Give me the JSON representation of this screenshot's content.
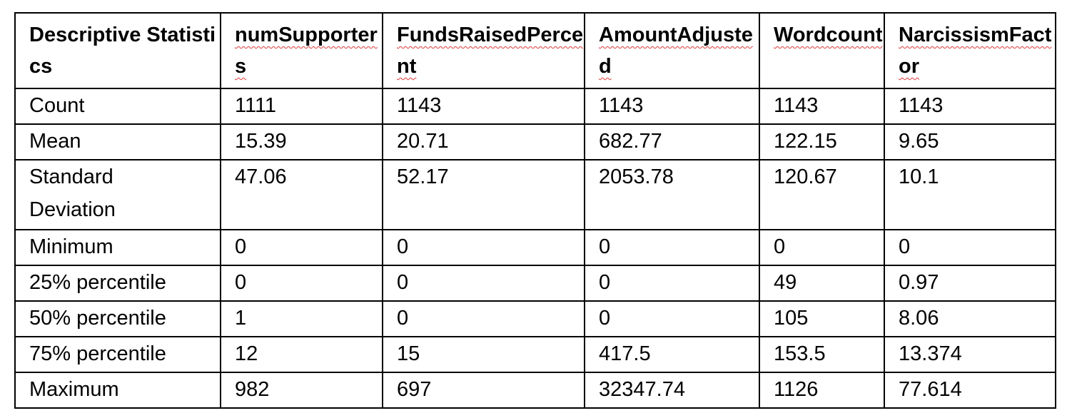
{
  "table": {
    "headers": [
      "Descriptive Statistics",
      "numSupporters",
      "FundsRaisedPercent",
      "AmountAdjusted",
      "Wordcount",
      "NarcissismFactor"
    ],
    "rows": [
      {
        "label": "Count",
        "values": [
          "1111",
          "1143",
          "1143",
          "1143",
          "1143"
        ]
      },
      {
        "label": "Mean",
        "values": [
          "15.39",
          "20.71",
          "682.77",
          "122.15",
          "9.65"
        ]
      },
      {
        "label": "Standard Deviation",
        "values": [
          "47.06",
          "52.17",
          "2053.78",
          "120.67",
          "10.1"
        ]
      },
      {
        "label": "Minimum",
        "values": [
          "0",
          "0",
          "0",
          "0",
          "0"
        ]
      },
      {
        "label": "25% percentile",
        "values": [
          "0",
          "0",
          "0",
          "49",
          "0.97"
        ]
      },
      {
        "label": "50% percentile",
        "values": [
          "1",
          "0",
          "0",
          "105",
          "8.06"
        ]
      },
      {
        "label": "75% percentile",
        "values": [
          "12",
          "15",
          "417.5",
          "153.5",
          "13.374"
        ]
      },
      {
        "label": "Maximum",
        "values": [
          "982",
          "697",
          "32347.74",
          "1126",
          "77.614"
        ]
      }
    ]
  }
}
